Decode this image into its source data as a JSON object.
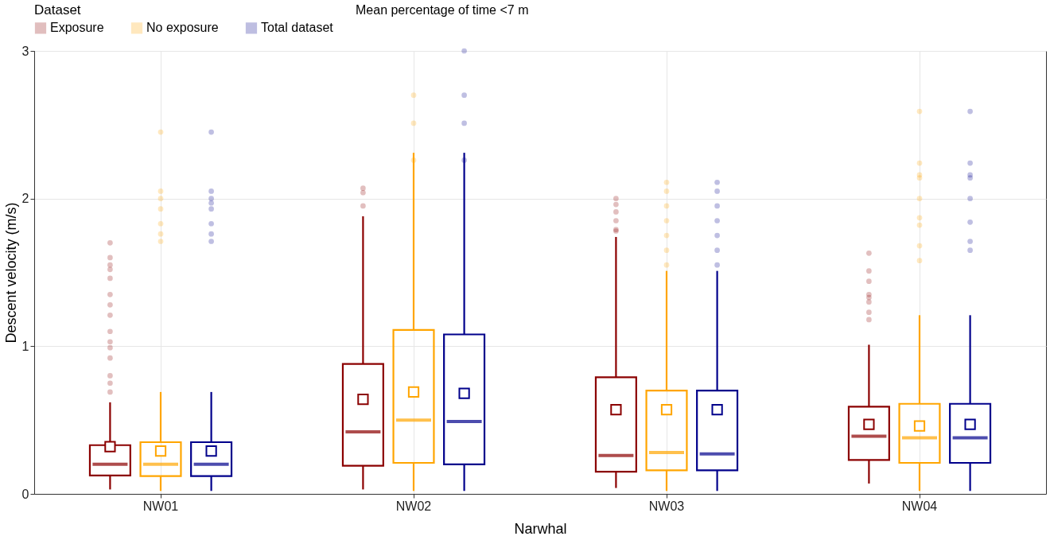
{
  "chart_data": {
    "type": "box",
    "xlabel": "Narwhal",
    "ylabel": "Descent velocity (m/s)",
    "legend_title": "Dataset",
    "legend": "top",
    "grid": true,
    "categories": [
      "NW01",
      "NW02",
      "NW03",
      "NW04"
    ],
    "ylim": [
      0,
      3
    ],
    "yticks": [
      0,
      1,
      2,
      3
    ],
    "annotations": [
      "Mean percentage of time <7 m"
    ],
    "series": [
      {
        "name": "Exposure",
        "color": "#8b0000",
        "boxes": [
          {
            "low": 0.03,
            "q1": 0.125,
            "median": 0.2,
            "q3": 0.33,
            "high": 0.62,
            "mean": 0.32,
            "outliers": [
              1.7,
              1.6,
              1.55,
              1.52,
              1.46,
              1.35,
              1.28,
              1.21,
              1.1,
              1.03,
              0.99,
              0.92,
              0.8,
              0.75,
              0.69
            ]
          },
          {
            "low": 0.03,
            "q1": 0.19,
            "median": 0.42,
            "q3": 0.88,
            "high": 1.88,
            "mean": 0.64,
            "outliers": [
              2.07,
              2.04,
              1.95
            ]
          },
          {
            "low": 0.04,
            "q1": 0.15,
            "median": 0.26,
            "q3": 0.79,
            "high": 1.74,
            "mean": 0.57,
            "outliers": [
              2.0,
              1.96,
              1.91,
              1.85,
              1.79,
              1.78
            ]
          },
          {
            "low": 0.07,
            "q1": 0.23,
            "median": 0.39,
            "q3": 0.59,
            "high": 1.01,
            "mean": 0.47,
            "outliers": [
              1.63,
              1.51,
              1.44,
              1.35,
              1.33,
              1.3,
              1.23,
              1.18
            ]
          }
        ]
      },
      {
        "name": "No exposure",
        "color": "#ffa500",
        "boxes": [
          {
            "low": 0.02,
            "q1": 0.12,
            "median": 0.2,
            "q3": 0.35,
            "high": 0.69,
            "mean": 0.29,
            "outliers": [
              2.45,
              2.05,
              2.0,
              1.93,
              1.83,
              1.76,
              1.71
            ]
          },
          {
            "low": 0.02,
            "q1": 0.21,
            "median": 0.5,
            "q3": 1.11,
            "high": 2.31,
            "mean": 0.69,
            "outliers": [
              2.7,
              2.51,
              2.26
            ]
          },
          {
            "low": 0.02,
            "q1": 0.16,
            "median": 0.28,
            "q3": 0.7,
            "high": 1.51,
            "mean": 0.57,
            "outliers": [
              2.11,
              2.05,
              1.95,
              1.85,
              1.75,
              1.65,
              1.55
            ]
          },
          {
            "low": 0.02,
            "q1": 0.21,
            "median": 0.38,
            "q3": 0.61,
            "high": 1.21,
            "mean": 0.46,
            "outliers": [
              2.59,
              2.24,
              2.16,
              2.14,
              2.0,
              1.87,
              1.82,
              1.68,
              1.58
            ]
          }
        ]
      },
      {
        "name": "Total dataset",
        "color": "#00008b",
        "boxes": [
          {
            "low": 0.02,
            "q1": 0.12,
            "median": 0.2,
            "q3": 0.35,
            "high": 0.69,
            "mean": 0.29,
            "outliers": [
              2.45,
              2.05,
              2.0,
              1.97,
              1.93,
              1.83,
              1.76,
              1.71
            ]
          },
          {
            "low": 0.02,
            "q1": 0.2,
            "median": 0.49,
            "q3": 1.08,
            "high": 2.31,
            "mean": 0.68,
            "outliers": [
              3.0,
              2.7,
              2.51,
              2.26
            ]
          },
          {
            "low": 0.02,
            "q1": 0.16,
            "median": 0.27,
            "q3": 0.7,
            "high": 1.51,
            "mean": 0.57,
            "outliers": [
              2.11,
              2.05,
              1.95,
              1.85,
              1.75,
              1.65,
              1.55
            ]
          },
          {
            "low": 0.02,
            "q1": 0.21,
            "median": 0.38,
            "q3": 0.61,
            "high": 1.21,
            "mean": 0.47,
            "outliers": [
              2.59,
              2.24,
              2.16,
              2.14,
              2.0,
              1.84,
              1.71,
              1.65
            ]
          }
        ]
      }
    ]
  }
}
